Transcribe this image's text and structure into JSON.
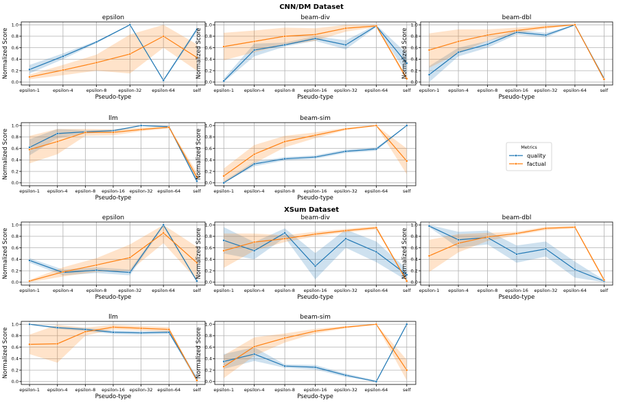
{
  "sections": [
    {
      "title": "CNN/DM Dataset"
    },
    {
      "title": "XSum Dataset"
    }
  ],
  "legend": {
    "title": "Metrics",
    "entries": [
      {
        "name": "quality",
        "color": "#1f77b4"
      },
      {
        "name": "factual",
        "color": "#ff7f0e"
      }
    ]
  },
  "chart_data": [
    {
      "type": "line",
      "dataset": "CNN/DM Dataset",
      "title": "epsilon",
      "xlabel": "Pseudo-type",
      "ylabel": "Normalized Score",
      "ylim": [
        0,
        1
      ],
      "categories": [
        "epsilon-1",
        "epsilon-4",
        "epsilon-8",
        "epsilon-32",
        "epsilon-64",
        "self"
      ],
      "series": [
        {
          "name": "quality",
          "values": [
            0.22,
            0.45,
            0.7,
            1.0,
            0.03,
            0.92
          ],
          "lower": [
            0.15,
            0.4,
            0.68,
            0.99,
            0.01,
            0.88
          ],
          "upper": [
            0.3,
            0.5,
            0.72,
            1.0,
            0.05,
            0.95
          ]
        },
        {
          "name": "factual",
          "values": [
            0.09,
            0.21,
            0.34,
            0.49,
            0.8,
            0.43
          ],
          "lower": [
            0.05,
            0.12,
            0.2,
            0.15,
            0.6,
            0.2
          ],
          "upper": [
            0.13,
            0.3,
            0.48,
            0.83,
            1.0,
            0.66
          ]
        }
      ],
      "grid": true
    },
    {
      "type": "line",
      "dataset": "CNN/DM Dataset",
      "title": "beam-div",
      "xlabel": "Pseudo-type",
      "ylabel": "Normalized Score",
      "ylim": [
        0,
        1
      ],
      "categories": [
        "epsilon-1",
        "epsilon-4",
        "epsilon-8",
        "epsilon-16",
        "epsilon-32",
        "epsilon-64",
        "self"
      ],
      "series": [
        {
          "name": "quality",
          "values": [
            0.02,
            0.56,
            0.65,
            0.76,
            0.65,
            0.98,
            0.33
          ],
          "lower": [
            0.0,
            0.45,
            0.62,
            0.72,
            0.57,
            0.96,
            0.15
          ],
          "upper": [
            0.06,
            0.67,
            0.69,
            0.8,
            0.73,
            1.0,
            0.5
          ]
        },
        {
          "name": "factual",
          "values": [
            0.62,
            0.71,
            0.8,
            0.83,
            0.94,
            0.98,
            0.06
          ],
          "lower": [
            0.38,
            0.52,
            0.65,
            0.72,
            0.88,
            0.96,
            0.02
          ],
          "upper": [
            0.86,
            0.9,
            0.95,
            0.94,
            1.0,
            1.0,
            0.1
          ]
        }
      ],
      "grid": true
    },
    {
      "type": "line",
      "dataset": "CNN/DM Dataset",
      "title": "beam-dbl",
      "xlabel": "Pseudo-type",
      "ylabel": "Normalized Score",
      "ylim": [
        0,
        1
      ],
      "categories": [
        "epsilon-1",
        "epsilon-4",
        "epsilon-8",
        "epsilon-16",
        "epsilon-32",
        "epsilon-64",
        "self"
      ],
      "series": [
        {
          "name": "quality",
          "values": [
            0.13,
            0.52,
            0.66,
            0.87,
            0.82,
            1.0,
            0.06
          ],
          "lower": [
            0.0,
            0.45,
            0.6,
            0.83,
            0.78,
            0.99,
            0.03
          ],
          "upper": [
            0.28,
            0.6,
            0.72,
            0.91,
            0.86,
            1.0,
            0.09
          ]
        },
        {
          "name": "factual",
          "values": [
            0.56,
            0.71,
            0.82,
            0.9,
            0.96,
            1.0,
            0.05
          ],
          "lower": [
            0.25,
            0.5,
            0.72,
            0.85,
            0.93,
            0.99,
            0.02
          ],
          "upper": [
            0.85,
            0.92,
            0.92,
            0.95,
            0.99,
            1.0,
            0.08
          ]
        }
      ],
      "grid": true
    },
    {
      "type": "line",
      "dataset": "CNN/DM Dataset",
      "title": "llm",
      "xlabel": "Pseudo-type",
      "ylabel": "Normalized Score",
      "ylim": [
        0,
        1
      ],
      "categories": [
        "epsilon-1",
        "epsilon-4",
        "epsilon-8",
        "epsilon-16",
        "epsilon-32",
        "epsilon-64",
        "self"
      ],
      "series": [
        {
          "name": "quality",
          "values": [
            0.62,
            0.86,
            0.89,
            0.91,
            1.0,
            0.98,
            0.03
          ],
          "lower": [
            0.48,
            0.78,
            0.86,
            0.89,
            0.99,
            0.97,
            0.0
          ],
          "upper": [
            0.76,
            0.94,
            0.92,
            0.93,
            1.0,
            0.99,
            0.06
          ]
        },
        {
          "name": "factual",
          "values": [
            0.58,
            0.72,
            0.88,
            0.88,
            0.93,
            0.97,
            0.1
          ],
          "lower": [
            0.34,
            0.5,
            0.82,
            0.83,
            0.9,
            0.95,
            0.02
          ],
          "upper": [
            0.82,
            0.94,
            0.94,
            0.93,
            0.96,
            0.99,
            0.18
          ]
        }
      ],
      "grid": true
    },
    {
      "type": "line",
      "dataset": "CNN/DM Dataset",
      "title": "beam-sim",
      "xlabel": "Pseudo-type",
      "ylabel": "Normalized Score",
      "ylim": [
        0,
        1
      ],
      "categories": [
        "epsilon-1",
        "epsilon-4",
        "epsilon-8",
        "epsilon-16",
        "epsilon-32",
        "epsilon-64",
        "self"
      ],
      "series": [
        {
          "name": "quality",
          "values": [
            0.0,
            0.33,
            0.42,
            0.45,
            0.55,
            0.59,
            1.0
          ],
          "lower": [
            0.0,
            0.29,
            0.39,
            0.42,
            0.52,
            0.56,
            0.99
          ],
          "upper": [
            0.03,
            0.37,
            0.45,
            0.48,
            0.58,
            0.62,
            1.0
          ]
        },
        {
          "name": "factual",
          "values": [
            0.12,
            0.5,
            0.72,
            0.83,
            0.94,
            1.0,
            0.38
          ],
          "lower": [
            0.0,
            0.34,
            0.62,
            0.78,
            0.92,
            0.99,
            0.15
          ],
          "upper": [
            0.25,
            0.66,
            0.82,
            0.88,
            0.96,
            1.0,
            0.6
          ]
        }
      ],
      "grid": true
    },
    {
      "type": "line",
      "dataset": "XSum Dataset",
      "title": "epsilon",
      "xlabel": "Pseudo-type",
      "ylabel": "Normalized Score",
      "ylim": [
        0,
        1
      ],
      "categories": [
        "epsilon-1",
        "epsilon-4",
        "epsilon-8",
        "epsilon-32",
        "epsilon-64",
        "self"
      ],
      "series": [
        {
          "name": "quality",
          "values": [
            0.38,
            0.17,
            0.21,
            0.17,
            1.0,
            0.02
          ],
          "lower": [
            0.34,
            0.12,
            0.16,
            0.12,
            0.97,
            0.0
          ],
          "upper": [
            0.42,
            0.22,
            0.26,
            0.22,
            1.0,
            0.04
          ]
        },
        {
          "name": "factual",
          "values": [
            0.02,
            0.18,
            0.3,
            0.43,
            0.86,
            0.34
          ],
          "lower": [
            0.0,
            0.1,
            0.18,
            0.2,
            0.68,
            0.04
          ],
          "upper": [
            0.04,
            0.26,
            0.42,
            0.66,
            1.0,
            0.62
          ]
        }
      ],
      "grid": true
    },
    {
      "type": "line",
      "dataset": "XSum Dataset",
      "title": "beam-div",
      "xlabel": "Pseudo-type",
      "ylabel": "Normalized Score",
      "ylim": [
        0,
        1
      ],
      "categories": [
        "epsilon-1",
        "epsilon-4",
        "epsilon-8",
        "epsilon-16",
        "epsilon-32",
        "epsilon-64",
        "self"
      ],
      "series": [
        {
          "name": "quality",
          "values": [
            0.73,
            0.55,
            0.86,
            0.28,
            0.76,
            0.53,
            0.13
          ],
          "lower": [
            0.5,
            0.4,
            0.78,
            0.05,
            0.6,
            0.35,
            0.03
          ],
          "upper": [
            0.96,
            0.7,
            0.94,
            0.51,
            0.92,
            0.71,
            0.23
          ]
        },
        {
          "name": "factual",
          "values": [
            0.55,
            0.7,
            0.76,
            0.84,
            0.9,
            0.95,
            0.02
          ],
          "lower": [
            0.25,
            0.55,
            0.7,
            0.8,
            0.87,
            0.92,
            0.0
          ],
          "upper": [
            0.85,
            0.85,
            0.82,
            0.88,
            0.93,
            0.98,
            0.04
          ]
        }
      ],
      "grid": true
    },
    {
      "type": "line",
      "dataset": "XSum Dataset",
      "title": "beam-dbl",
      "xlabel": "Pseudo-type",
      "ylabel": "Normalized Score",
      "ylim": [
        0,
        1
      ],
      "categories": [
        "epsilon-1",
        "epsilon-4",
        "epsilon-8",
        "epsilon-16",
        "epsilon-32",
        "epsilon-64",
        "self"
      ],
      "series": [
        {
          "name": "quality",
          "values": [
            0.98,
            0.74,
            0.78,
            0.49,
            0.58,
            0.22,
            0.02
          ],
          "lower": [
            0.96,
            0.6,
            0.66,
            0.34,
            0.45,
            0.08,
            0.0
          ],
          "upper": [
            1.0,
            0.88,
            0.9,
            0.64,
            0.71,
            0.36,
            0.04
          ]
        },
        {
          "name": "factual",
          "values": [
            0.46,
            0.68,
            0.79,
            0.85,
            0.94,
            0.96,
            0.04
          ],
          "lower": [
            0.18,
            0.52,
            0.72,
            0.82,
            0.91,
            0.94,
            0.01
          ],
          "upper": [
            0.74,
            0.84,
            0.86,
            0.88,
            0.97,
            0.98,
            0.07
          ]
        }
      ],
      "grid": true
    },
    {
      "type": "line",
      "dataset": "XSum Dataset",
      "title": "llm",
      "xlabel": "Pseudo-type",
      "ylabel": "Normalized Score",
      "ylim": [
        0,
        1
      ],
      "categories": [
        "epsilon-1",
        "epsilon-4",
        "epsilon-8",
        "epsilon-16",
        "epsilon-32",
        "epsilon-64",
        "self"
      ],
      "series": [
        {
          "name": "quality",
          "values": [
            1.0,
            0.94,
            0.91,
            0.86,
            0.85,
            0.86,
            0.04
          ],
          "lower": [
            0.99,
            0.92,
            0.88,
            0.83,
            0.82,
            0.83,
            0.0
          ],
          "upper": [
            1.0,
            0.96,
            0.94,
            0.89,
            0.88,
            0.89,
            0.08
          ]
        },
        {
          "name": "factual",
          "values": [
            0.65,
            0.66,
            0.87,
            0.95,
            0.93,
            0.91,
            0.02
          ],
          "lower": [
            0.48,
            0.33,
            0.8,
            0.91,
            0.89,
            0.87,
            0.0
          ],
          "upper": [
            0.82,
            0.99,
            0.94,
            0.99,
            0.97,
            0.95,
            0.04
          ]
        }
      ],
      "grid": true
    },
    {
      "type": "line",
      "dataset": "XSum Dataset",
      "title": "beam-sim",
      "xlabel": "Pseudo-type",
      "ylabel": "Normalized Score",
      "ylim": [
        0,
        1
      ],
      "categories": [
        "epsilon-1",
        "epsilon-4",
        "epsilon-8",
        "epsilon-16",
        "epsilon-32",
        "epsilon-64",
        "self"
      ],
      "series": [
        {
          "name": "quality",
          "values": [
            0.35,
            0.48,
            0.27,
            0.25,
            0.11,
            0.0,
            1.0
          ],
          "lower": [
            0.22,
            0.36,
            0.24,
            0.21,
            0.08,
            0.0,
            0.98
          ],
          "upper": [
            0.48,
            0.6,
            0.3,
            0.29,
            0.14,
            0.02,
            1.0
          ]
        },
        {
          "name": "factual",
          "values": [
            0.26,
            0.61,
            0.76,
            0.88,
            0.95,
            1.0,
            0.2
          ],
          "lower": [
            0.06,
            0.45,
            0.68,
            0.84,
            0.93,
            0.99,
            0.02
          ],
          "upper": [
            0.46,
            0.77,
            0.84,
            0.92,
            0.97,
            1.0,
            0.38
          ]
        }
      ],
      "grid": true
    }
  ]
}
